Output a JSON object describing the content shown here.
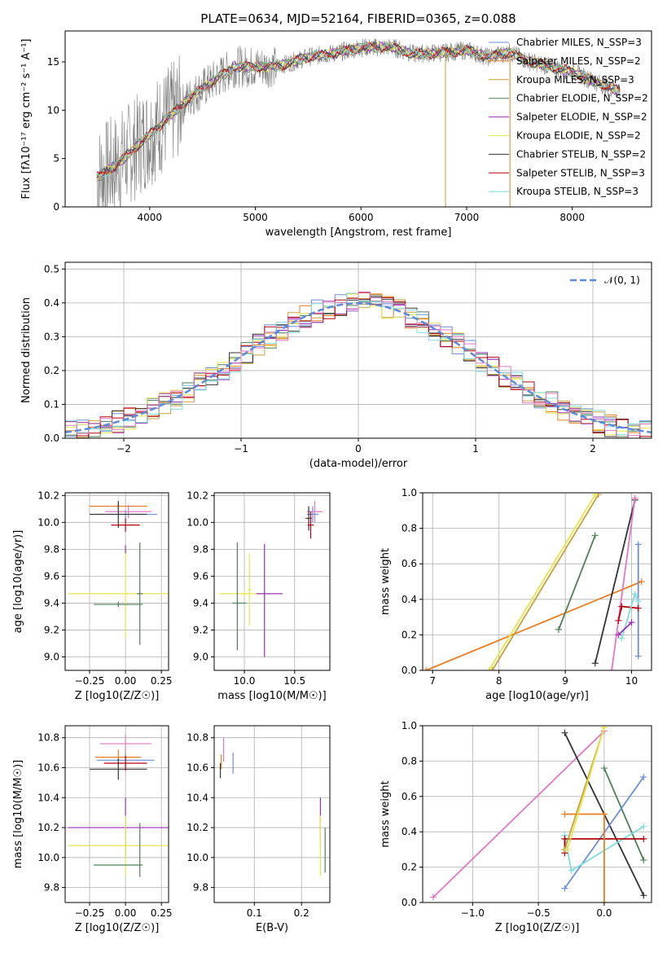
{
  "figure_title": "PLATE=0634, MJD=52164, FIBERID=0365, z=0.088",
  "chart_data": [
    {
      "id": "spectrum",
      "type": "line",
      "xlabel": "wavelength [Angstrom, rest frame]",
      "ylabel": "Flux [fλ10⁻¹⁷ erg cm⁻² s⁻¹ A⁻¹]",
      "xlim": [
        3200,
        8750
      ],
      "ylim": [
        0,
        18.2
      ],
      "xticks": [
        4000,
        5000,
        6000,
        7000,
        8000
      ],
      "yticks": [
        0,
        5,
        10,
        15
      ],
      "grid": false,
      "legend_position": "top-right",
      "series": [
        {
          "name": "Chabrier MILES, N_SSP=3",
          "color": "#6a8fd8"
        },
        {
          "name": "Salpeter MILES, N_SSP=2",
          "color": "#e97d1f"
        },
        {
          "name": "Kroupa MILES, N_SSP=3",
          "color": "#c8a03a"
        },
        {
          "name": "Chabrier ELODIE, N_SSP=2",
          "color": "#4e7f55"
        },
        {
          "name": "Salpeter ELODIE, N_SSP=2",
          "color": "#9b30b8"
        },
        {
          "name": "Kroupa ELODIE, N_SSP=2",
          "color": "#e6e64a"
        },
        {
          "name": "Chabrier STELIB, N_SSP=2",
          "color": "#333333"
        },
        {
          "name": "Salpeter STELIB, N_SSP=3",
          "color": "#b8000f"
        },
        {
          "name": "Kroupa STELIB, N_SSP=3",
          "color": "#7fdde0"
        }
      ],
      "observed_color": "#7f7f7f",
      "model_trend": [
        [
          3500,
          3.0
        ],
        [
          3700,
          4.5
        ],
        [
          3900,
          6.5
        ],
        [
          4000,
          7.5
        ],
        [
          4200,
          9.5
        ],
        [
          4400,
          11.5
        ],
        [
          4600,
          13.0
        ],
        [
          4800,
          14.5
        ],
        [
          5000,
          14.5
        ],
        [
          5200,
          14.5
        ],
        [
          5500,
          15.5
        ],
        [
          5800,
          16.0
        ],
        [
          6000,
          16.5
        ],
        [
          6300,
          16.5
        ],
        [
          6500,
          15.8
        ],
        [
          6800,
          16.0
        ],
        [
          7000,
          16.2
        ],
        [
          7200,
          15.5
        ],
        [
          7400,
          16.0
        ],
        [
          7600,
          15.0
        ],
        [
          7800,
          14.5
        ],
        [
          8000,
          14.0
        ],
        [
          8200,
          13.0
        ],
        [
          8450,
          12.0
        ]
      ]
    },
    {
      "id": "residuals",
      "type": "line",
      "xlabel": "(data-model)/error",
      "ylabel": "Normed distribution",
      "xlim": [
        -2.5,
        2.5
      ],
      "ylim": [
        0,
        0.52
      ],
      "xticks": [
        -2,
        -1,
        0,
        1,
        2
      ],
      "yticks": [
        0.0,
        0.1,
        0.2,
        0.3,
        0.4,
        0.5
      ],
      "grid": true,
      "legend_position": "top-right",
      "reference": {
        "name": "𝒩(0, 1)",
        "color": "#5b8bd9",
        "mean": 0,
        "sigma": 1
      }
    },
    {
      "id": "age_vs_Z",
      "type": "scatter",
      "xlabel": "Z [log10(Z/Z☉)]",
      "ylabel": "age  [log10(age/yr)]",
      "xlim": [
        -0.42,
        0.3
      ],
      "ylim": [
        8.9,
        10.22
      ],
      "xticks": [
        -0.25,
        0.0,
        0.25
      ],
      "yticks": [
        9.0,
        9.2,
        9.4,
        9.6,
        9.8,
        10.0,
        10.2
      ],
      "grid": true,
      "points": [
        {
          "x": -0.05,
          "y": 10.12,
          "xerr": 0.2,
          "yerr": 0.02,
          "color": "#e97d1f"
        },
        {
          "x": 0.02,
          "y": 10.08,
          "xerr": 0.16,
          "yerr": 0.05,
          "color": "#e377c2"
        },
        {
          "x": 0.0,
          "y": 10.06,
          "xerr": 0.22,
          "yerr": 0.03,
          "color": "#6a8fd8"
        },
        {
          "x": -0.05,
          "y": 10.06,
          "xerr": 0.2,
          "yerr": 0.1,
          "color": "#333333"
        },
        {
          "x": 0.0,
          "y": 9.98,
          "xerr": 0.1,
          "yerr": 0.05,
          "color": "#b8000f"
        },
        {
          "x": 0.0,
          "y": 9.47,
          "xerr": 0.4,
          "yerr": 0.33,
          "color": "#e6e64a"
        },
        {
          "x": -0.05,
          "y": 9.39,
          "xerr": 0.17,
          "yerr": 0.02,
          "color": "#4e7f55"
        },
        {
          "x": 0.1,
          "y": 9.47,
          "xerr": 0.02,
          "yerr": 0.38,
          "color": "#4e7f55"
        },
        {
          "x": 0.0,
          "y": 9.8,
          "xerr": 0.0,
          "yerr": 0.03,
          "color": "#9b30b8"
        }
      ]
    },
    {
      "id": "age_vs_mass",
      "type": "scatter",
      "xlabel": "mass [log10(M/M☉)]",
      "ylabel": "",
      "xlim": [
        9.7,
        10.85
      ],
      "ylim": [
        8.9,
        10.22
      ],
      "xticks": [
        10.0,
        10.5
      ],
      "yticks": [
        9.0,
        9.2,
        9.4,
        9.6,
        9.8,
        10.0,
        10.2
      ],
      "grid": true,
      "points": [
        {
          "x": 10.7,
          "y": 10.08,
          "xerr": 0.08,
          "yerr": 0.08,
          "color": "#e377c2"
        },
        {
          "x": 10.68,
          "y": 10.06,
          "xerr": 0.06,
          "yerr": 0.06,
          "color": "#6a8fd8"
        },
        {
          "x": 10.64,
          "y": 10.03,
          "xerr": 0.03,
          "yerr": 0.09,
          "color": "#333333"
        },
        {
          "x": 10.66,
          "y": 9.98,
          "xerr": 0.03,
          "yerr": 0.1,
          "color": "#b8000f"
        },
        {
          "x": 10.0,
          "y": 9.47,
          "xerr": 0.25,
          "yerr": 0.02,
          "color": "#e6e64a"
        },
        {
          "x": 10.05,
          "y": 9.5,
          "xerr": 0.02,
          "yerr": 0.27,
          "color": "#e6e64a"
        },
        {
          "x": 10.25,
          "y": 9.47,
          "xerr": 0.13,
          "yerr": 0.0,
          "color": "#9b30b8"
        },
        {
          "x": 10.2,
          "y": 9.42,
          "xerr": 0.0,
          "yerr": 0.42,
          "color": "#9b30b8"
        },
        {
          "x": 9.95,
          "y": 9.4,
          "xerr": 0.07,
          "yerr": 0.0,
          "color": "#4e7f55"
        },
        {
          "x": 9.93,
          "y": 9.45,
          "xerr": 0.0,
          "yerr": 0.4,
          "color": "#4e7f55"
        }
      ]
    },
    {
      "id": "weight_vs_age",
      "type": "line",
      "xlabel": "age  [log10(age/yr)]",
      "ylabel": "mass weight",
      "xlim": [
        6.85,
        10.3
      ],
      "ylim": [
        0,
        1.0
      ],
      "xticks": [
        7,
        8,
        9,
        10
      ],
      "yticks": [
        0.0,
        0.2,
        0.4,
        0.6,
        0.8,
        1.0
      ],
      "grid": true,
      "series": [
        {
          "color": "#e97d1f",
          "points": [
            [
              6.9,
              0.0
            ],
            [
              10.15,
              0.5
            ]
          ]
        },
        {
          "color": "#c8a03a",
          "points": [
            [
              7.9,
              0.0
            ],
            [
              9.5,
              0.99
            ]
          ]
        },
        {
          "color": "#e6e64a",
          "points": [
            [
              7.85,
              0.0
            ],
            [
              9.45,
              0.99
            ]
          ]
        },
        {
          "color": "#4e7f55",
          "points": [
            [
              8.9,
              0.23
            ],
            [
              9.45,
              0.76
            ]
          ]
        },
        {
          "color": "#333333",
          "points": [
            [
              9.45,
              0.04
            ],
            [
              10.05,
              0.96
            ]
          ]
        },
        {
          "color": "#e377c2",
          "points": [
            [
              9.7,
              0.0
            ],
            [
              10.05,
              0.97
            ]
          ]
        },
        {
          "color": "#6a8fd8",
          "points": [
            [
              10.1,
              0.08
            ],
            [
              10.1,
              0.71
            ]
          ]
        },
        {
          "color": "#b8000f",
          "points": [
            [
              9.8,
              0.28
            ],
            [
              9.85,
              0.36
            ],
            [
              10.1,
              0.35
            ]
          ]
        },
        {
          "color": "#7fdde0",
          "points": [
            [
              9.85,
              0.18
            ],
            [
              10.05,
              0.43
            ],
            [
              10.1,
              0.39
            ]
          ]
        },
        {
          "color": "#9b30b8",
          "points": [
            [
              9.8,
              0.2
            ],
            [
              10.0,
              0.27
            ]
          ]
        }
      ]
    },
    {
      "id": "mass_vs_Z",
      "type": "scatter",
      "xlabel": "Z [log10(Z/Z☉)]",
      "ylabel": "mass [log10(M/M☉)]",
      "xlim": [
        -0.42,
        0.3
      ],
      "ylim": [
        9.7,
        10.88
      ],
      "xticks": [
        -0.25,
        0.0,
        0.25
      ],
      "yticks": [
        9.8,
        10.0,
        10.2,
        10.4,
        10.6,
        10.8
      ],
      "grid": true,
      "points": [
        {
          "x": 0.0,
          "y": 10.76,
          "xerr": 0.18,
          "yerr": 0.06,
          "color": "#e377c2"
        },
        {
          "x": -0.05,
          "y": 10.67,
          "xerr": 0.16,
          "yerr": 0.05,
          "color": "#e97d1f"
        },
        {
          "x": 0.0,
          "y": 10.65,
          "xerr": 0.2,
          "yerr": 0.05,
          "color": "#6a8fd8"
        },
        {
          "x": 0.0,
          "y": 10.63,
          "xerr": 0.15,
          "yerr": 0.05,
          "color": "#b8000f"
        },
        {
          "x": -0.05,
          "y": 10.59,
          "xerr": 0.2,
          "yerr": 0.07,
          "color": "#333333"
        },
        {
          "x": 0.0,
          "y": 10.2,
          "xerr": 0.4,
          "yerr": 0.2,
          "color": "#9b30b8"
        },
        {
          "x": 0.0,
          "y": 10.08,
          "xerr": 0.4,
          "yerr": 0.2,
          "color": "#e6e64a"
        },
        {
          "x": -0.05,
          "y": 9.95,
          "xerr": 0.17,
          "yerr": 0.0,
          "color": "#4e7f55"
        },
        {
          "x": 0.1,
          "y": 10.05,
          "xerr": 0.0,
          "yerr": 0.18,
          "color": "#4e7f55"
        }
      ]
    },
    {
      "id": "mass_vs_EBV",
      "type": "scatter",
      "xlabel": "E(B-V)",
      "ylabel": "",
      "xlim": [
        0.015,
        0.26
      ],
      "ylim": [
        9.7,
        10.88
      ],
      "xticks": [
        0.1,
        0.2
      ],
      "yticks": [
        9.8,
        10.0,
        10.2,
        10.4,
        10.6,
        10.8
      ],
      "grid": true,
      "points": [
        {
          "x": 0.035,
          "y": 10.72,
          "xerr": 0.0,
          "yerr": 0.08,
          "color": "#e377c2"
        },
        {
          "x": 0.03,
          "y": 10.64,
          "xerr": 0.0,
          "yerr": 0.05,
          "color": "#e97d1f"
        },
        {
          "x": 0.055,
          "y": 10.63,
          "xerr": 0.0,
          "yerr": 0.07,
          "color": "#6a8fd8"
        },
        {
          "x": 0.028,
          "y": 10.58,
          "xerr": 0.0,
          "yerr": 0.05,
          "color": "#333333"
        },
        {
          "x": 0.24,
          "y": 10.25,
          "xerr": 0.0,
          "yerr": 0.15,
          "color": "#9b30b8"
        },
        {
          "x": 0.24,
          "y": 10.08,
          "xerr": 0.0,
          "yerr": 0.2,
          "color": "#e6e64a"
        },
        {
          "x": 0.25,
          "y": 10.05,
          "xerr": 0.0,
          "yerr": 0.15,
          "color": "#4e7f55"
        }
      ]
    },
    {
      "id": "weight_vs_Z",
      "type": "line",
      "xlabel": "Z [log10(Z/Z☉)]",
      "ylabel": "mass weight",
      "xlim": [
        -1.38,
        0.36
      ],
      "ylim": [
        0,
        1.0
      ],
      "xticks": [
        -1.0,
        -0.5,
        0.0
      ],
      "yticks": [
        0.0,
        0.2,
        0.4,
        0.6,
        0.8,
        1.0
      ],
      "grid": true,
      "series": [
        {
          "color": "#e377c2",
          "points": [
            [
              -1.3,
              0.03
            ],
            [
              0.0,
              0.97
            ]
          ]
        },
        {
          "color": "#333333",
          "points": [
            [
              -0.3,
              0.96
            ],
            [
              0.3,
              0.04
            ]
          ]
        },
        {
          "color": "#4e7f55",
          "points": [
            [
              0.0,
              0.76
            ],
            [
              0.3,
              0.24
            ]
          ]
        },
        {
          "color": "#6a8fd8",
          "points": [
            [
              -0.3,
              0.08
            ],
            [
              0.3,
              0.71
            ]
          ]
        },
        {
          "color": "#7fdde0",
          "points": [
            [
              -0.3,
              0.38
            ],
            [
              -0.25,
              0.18
            ],
            [
              0.3,
              0.43
            ]
          ]
        },
        {
          "color": "#b8000f",
          "points": [
            [
              -0.3,
              0.28
            ],
            [
              -0.3,
              0.36
            ],
            [
              0.3,
              0.36
            ]
          ]
        },
        {
          "color": "#e97d1f",
          "points": [
            [
              -0.3,
              0.5
            ],
            [
              0.0,
              0.5
            ],
            [
              0.0,
              0.0
            ]
          ]
        },
        {
          "color": "#c8a03a",
          "points": [
            [
              -0.3,
              0.3
            ],
            [
              0.0,
              0.99
            ]
          ]
        },
        {
          "color": "#e6e64a",
          "points": [
            [
              -0.28,
              0.3
            ],
            [
              0.0,
              0.99
            ]
          ]
        }
      ]
    }
  ]
}
